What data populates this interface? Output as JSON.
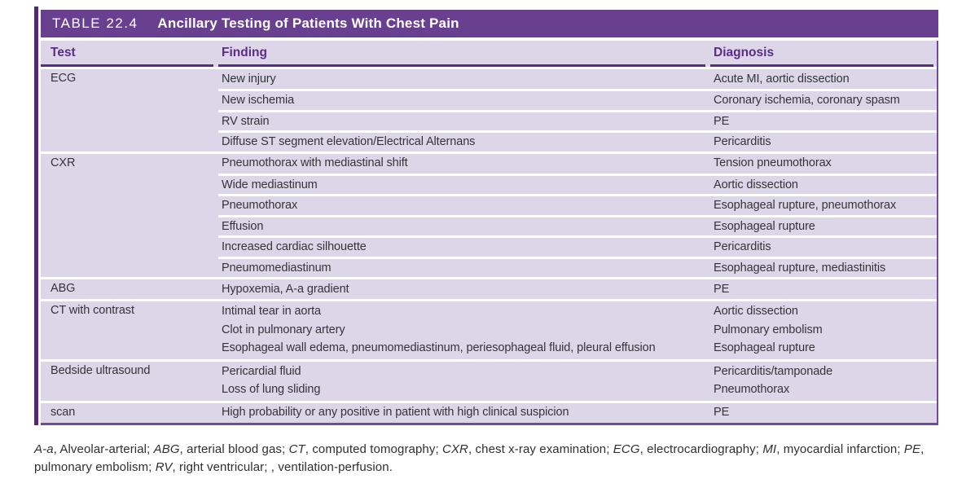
{
  "table": {
    "label": "TABLE 22.4",
    "title": "Ancillary Testing of Patients With Chest Pain",
    "columns": [
      "Test",
      "Finding",
      "Diagnosis"
    ],
    "groups": [
      {
        "test": "ECG",
        "rows": [
          {
            "finding": [
              "New injury"
            ],
            "diagnosis": [
              "Acute MI, aortic dissection"
            ]
          },
          {
            "finding": [
              "New ischemia"
            ],
            "diagnosis": [
              "Coronary ischemia, coronary spasm"
            ]
          },
          {
            "finding": [
              "RV strain"
            ],
            "diagnosis": [
              "PE"
            ]
          },
          {
            "finding": [
              "Diffuse ST segment elevation/Electrical Alternans"
            ],
            "diagnosis": [
              "Pericarditis"
            ]
          }
        ]
      },
      {
        "test": "CXR",
        "rows": [
          {
            "finding": [
              "Pneumothorax with mediastinal shift"
            ],
            "diagnosis": [
              "Tension pneumothorax"
            ]
          },
          {
            "finding": [
              "Wide mediastinum"
            ],
            "diagnosis": [
              "Aortic dissection"
            ]
          },
          {
            "finding": [
              "Pneumothorax"
            ],
            "diagnosis": [
              "Esophageal rupture, pneumothorax"
            ]
          },
          {
            "finding": [
              "Effusion"
            ],
            "diagnosis": [
              "Esophageal rupture"
            ]
          },
          {
            "finding": [
              "Increased cardiac silhouette"
            ],
            "diagnosis": [
              "Pericarditis"
            ]
          },
          {
            "finding": [
              "Pneumomediastinum"
            ],
            "diagnosis": [
              "Esophageal rupture, mediastinitis"
            ]
          }
        ]
      },
      {
        "test": "ABG",
        "rows": [
          {
            "finding": [
              "Hypoxemia, A-a gradient"
            ],
            "diagnosis": [
              "PE"
            ]
          }
        ]
      },
      {
        "test": "CT with contrast",
        "rows": [
          {
            "finding": [
              "Intimal tear in aorta",
              "Clot in pulmonary artery",
              "Esophageal wall edema, pneumomediastinum, periesophageal fluid, pleural effusion"
            ],
            "diagnosis": [
              "Aortic dissection",
              "Pulmonary embolism",
              "Esophageal rupture"
            ]
          }
        ]
      },
      {
        "test": "Bedside ultrasound",
        "rows": [
          {
            "finding": [
              "Pericardial fluid",
              "Loss of lung sliding"
            ],
            "diagnosis": [
              "Pericarditis/tamponade",
              "Pneumothorax"
            ]
          }
        ]
      },
      {
        "test": "scan",
        "rows": [
          {
            "finding": [
              "High probability or any positive in patient with high clinical suspicion"
            ],
            "diagnosis": [
              "PE"
            ]
          }
        ]
      }
    ]
  },
  "footnote": {
    "segments": [
      {
        "t": "A-a",
        "i": true
      },
      {
        "t": ", Alveolar-arterial; ",
        "i": false
      },
      {
        "t": "ABG",
        "i": true
      },
      {
        "t": ", arterial blood gas; ",
        "i": false
      },
      {
        "t": "CT",
        "i": true
      },
      {
        "t": ", computed tomography; ",
        "i": false
      },
      {
        "t": "CXR",
        "i": true
      },
      {
        "t": ", chest x-ray examination; ",
        "i": false
      },
      {
        "t": "ECG",
        "i": true
      },
      {
        "t": ", electrocardiography; ",
        "i": false
      },
      {
        "t": "MI",
        "i": true
      },
      {
        "t": ", myocardial infarction; ",
        "i": false
      },
      {
        "t": "PE",
        "i": true
      },
      {
        "t": ", pulmonary embolism; ",
        "i": false
      },
      {
        "t": "RV",
        "i": true
      },
      {
        "t": ", right ventricular; , ventilation-perfusion.",
        "i": false
      }
    ]
  },
  "colors": {
    "title_bar": "#68408f",
    "accent_bar": "#512b72",
    "table_border": "#6f4b9b",
    "header_text": "#5b2c85",
    "body_background": "#ddd6e9",
    "cell_text": "#343438",
    "footnote_text": "#2f2f2f"
  }
}
